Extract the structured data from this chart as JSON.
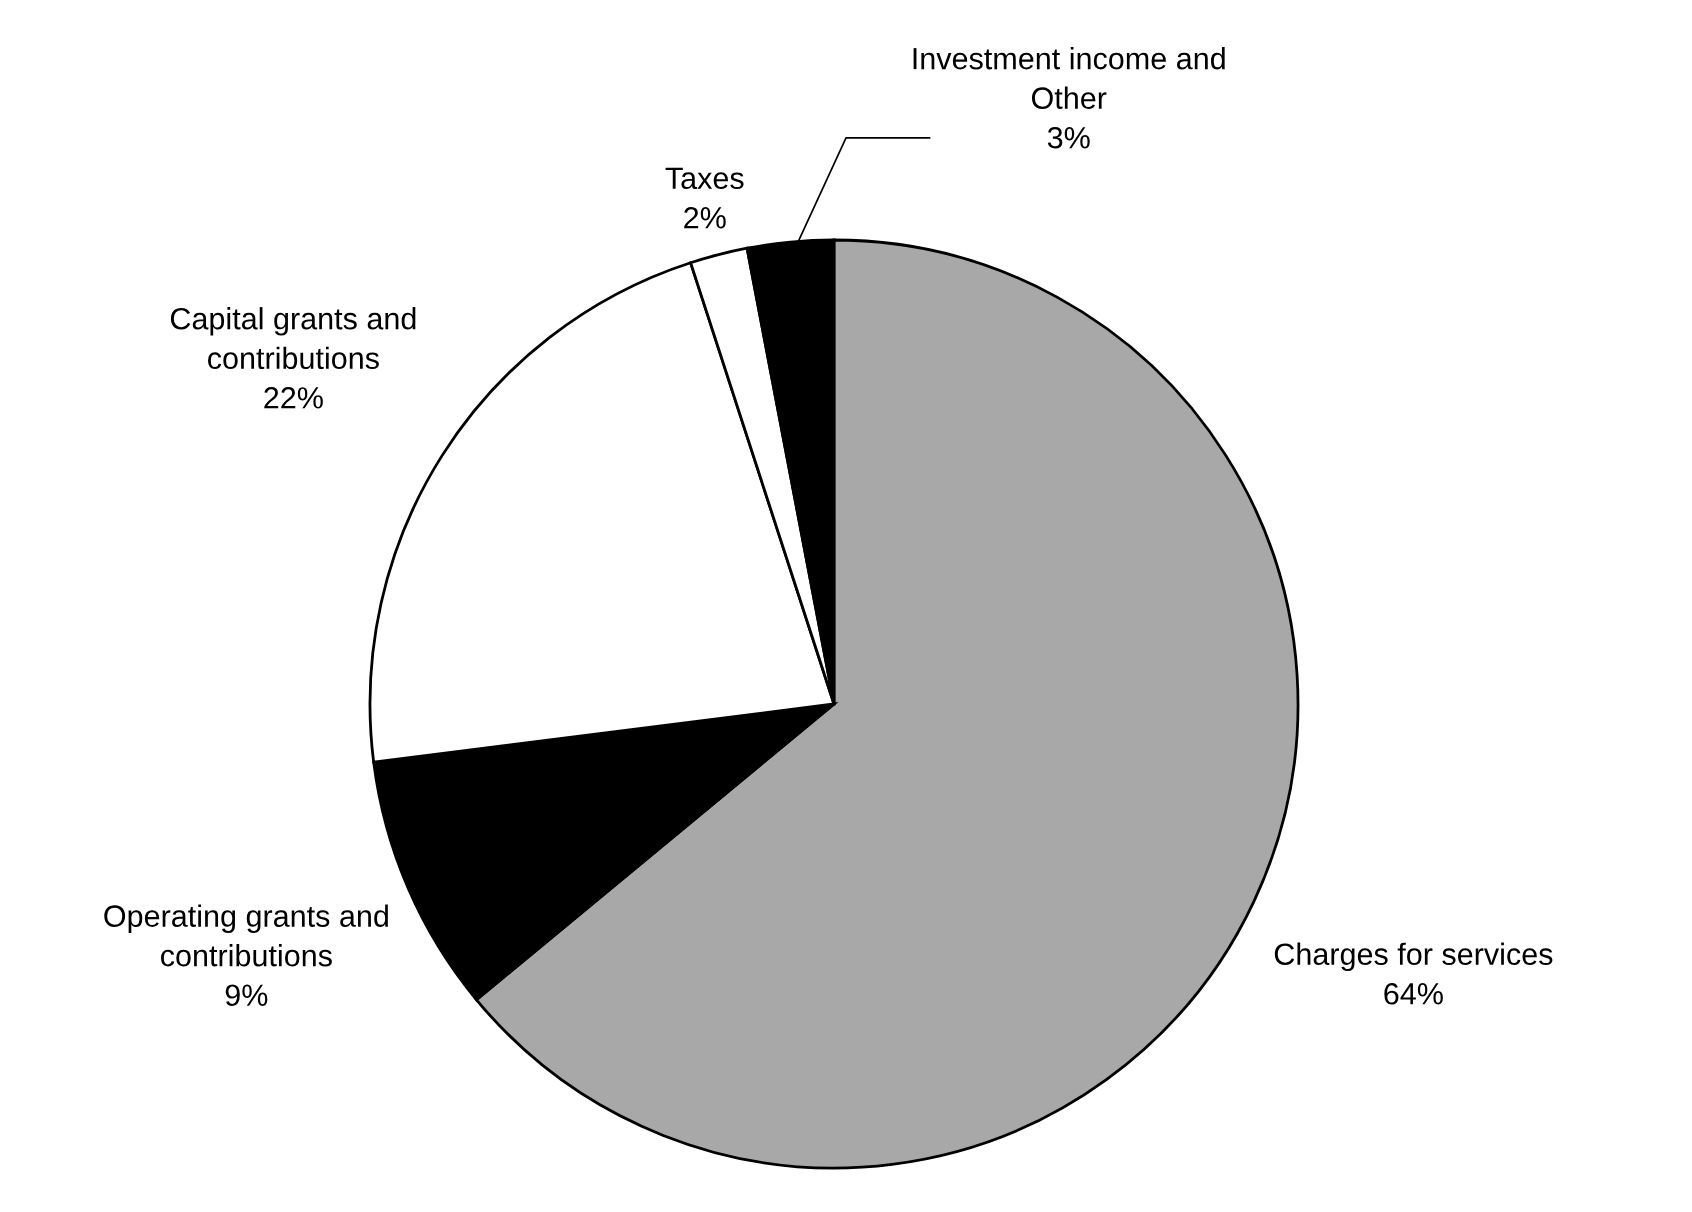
{
  "chart_data": {
    "type": "pie",
    "categories": [
      "Charges for services",
      "Operating grants and\ncontributions",
      "Capital grants and\ncontributions",
      "Taxes",
      "Investment income and\nOther"
    ],
    "values": [
      64,
      9,
      22,
      2,
      3
    ],
    "value_labels": [
      "64%",
      "9%",
      "22%",
      "2%",
      "3%"
    ],
    "colors": [
      "#a8a8a8",
      "#000000",
      "#ffffff",
      "#ffffff",
      "#000000"
    ],
    "legend": false
  }
}
